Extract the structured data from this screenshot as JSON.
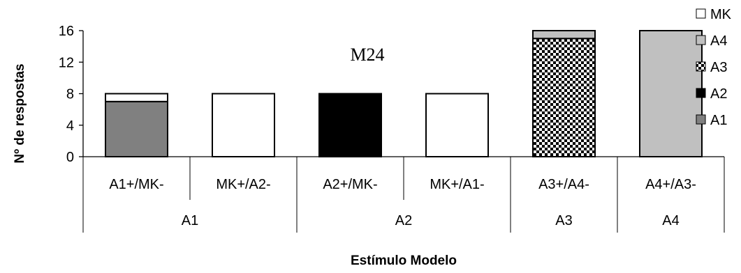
{
  "chart_data": {
    "type": "bar",
    "stacked": true,
    "annotation": "M24",
    "xlabel": "Estímulo Modelo",
    "ylabel": "Nº de respostas",
    "ylim": [
      0,
      16
    ],
    "yticks": [
      0,
      4,
      8,
      12,
      16
    ],
    "grid": false,
    "legend_position": "right",
    "categories": [
      "A1+/MK-",
      "MK+/A2-",
      "A2+/MK-",
      "MK+/A1-",
      "A3+/A4-",
      "A4+/A3-"
    ],
    "groups": [
      {
        "label": "A1",
        "span": 2
      },
      {
        "label": "A2",
        "span": 2
      },
      {
        "label": "A3",
        "span": 1
      },
      {
        "label": "A4",
        "span": 1
      }
    ],
    "series": [
      {
        "name": "A1",
        "color": "#808080",
        "pattern": "solid",
        "values": [
          7,
          0,
          0,
          0,
          0,
          0
        ]
      },
      {
        "name": "A2",
        "color": "#000000",
        "pattern": "solid",
        "values": [
          0,
          0,
          8,
          0,
          0,
          0
        ]
      },
      {
        "name": "A3",
        "color": "#000000",
        "pattern": "checker",
        "values": [
          0,
          0,
          0,
          0,
          15,
          0
        ]
      },
      {
        "name": "A4",
        "color": "#c0c0c0",
        "pattern": "solid",
        "values": [
          0,
          0,
          0,
          0,
          1,
          16
        ]
      },
      {
        "name": "MK",
        "color": "#ffffff",
        "pattern": "solid",
        "values": [
          1,
          8,
          0,
          8,
          0,
          0
        ]
      }
    ],
    "legend_order": [
      "MK",
      "A4",
      "A3",
      "A2",
      "A1"
    ]
  }
}
